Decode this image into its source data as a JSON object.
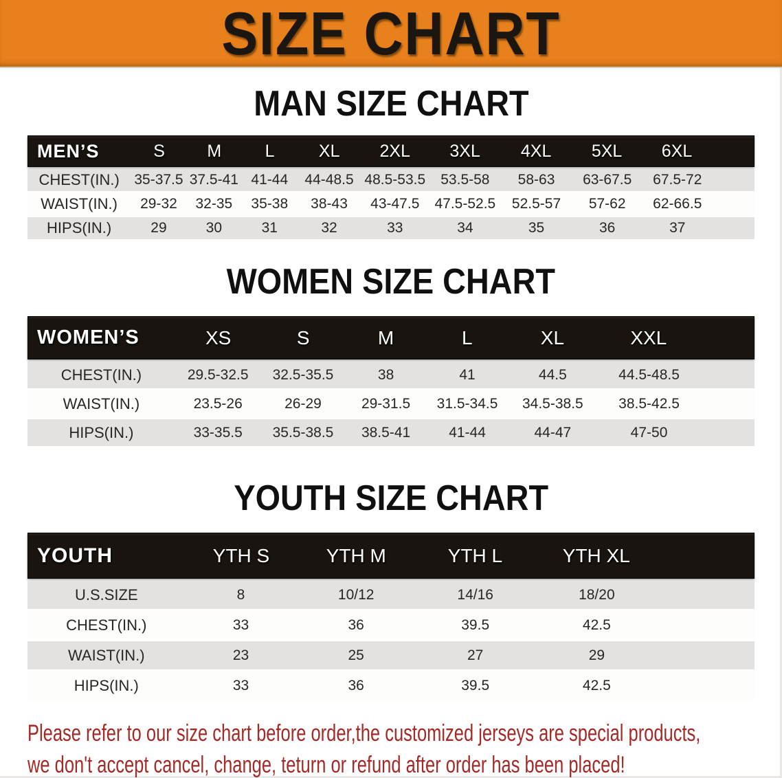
{
  "banner": {
    "title": "SIZE CHART"
  },
  "sections": [
    {
      "heading": "MAN SIZE CHART",
      "table": {
        "label": "MEN’S",
        "columns": [
          "S",
          "M",
          "L",
          "XL",
          "2XL",
          "3XL",
          "4XL",
          "5XL",
          "6XL"
        ],
        "rows": [
          {
            "label": "CHEST(IN.)",
            "values": [
              "35-37.5",
              "37.5-41",
              "41-44",
              "44-48.5",
              "48.5-53.5",
              "53.5-58",
              "58-63",
              "63-67.5",
              "67.5-72"
            ]
          },
          {
            "label": "WAIST(IN.)",
            "values": [
              "29-32",
              "32-35",
              "35-38",
              "38-43",
              "43-47.5",
              "47.5-52.5",
              "52.5-57",
              "57-62",
              "62-66.5"
            ]
          },
          {
            "label": "HIPS(IN.)",
            "values": [
              "29",
              "30",
              "31",
              "32",
              "33",
              "34",
              "35",
              "36",
              "37"
            ]
          }
        ]
      }
    },
    {
      "heading": "WOMEN SIZE CHART",
      "table": {
        "label": "WOMEN’S",
        "columns": [
          "XS",
          "S",
          "M",
          "L",
          "XL",
          "XXL"
        ],
        "rows": [
          {
            "label": "CHEST(IN.)",
            "values": [
              "29.5-32.5",
              "32.5-35.5",
              "38",
              "41",
              "44.5",
              "44.5-48.5"
            ]
          },
          {
            "label": "WAIST(IN.)",
            "values": [
              "23.5-26",
              "26-29",
              "29-31.5",
              "31.5-34.5",
              "34.5-38.5",
              "38.5-42.5"
            ]
          },
          {
            "label": "HIPS(IN.)",
            "values": [
              "33-35.5",
              "35.5-38.5",
              "38.5-41",
              "41-44",
              "44-47",
              "47-50"
            ]
          }
        ]
      }
    },
    {
      "heading": "YOUTH SIZE CHART",
      "table": {
        "label": "YOUTH",
        "columns": [
          "YTH S",
          "YTH M",
          "YTH L",
          "YTH XL"
        ],
        "rows": [
          {
            "label": "U.S.SIZE",
            "values": [
              "8",
              "10/12",
              "14/16",
              "18/20"
            ]
          },
          {
            "label": "CHEST(IN.)",
            "values": [
              "33",
              "36",
              "39.5",
              "42.5"
            ]
          },
          {
            "label": "WAIST(IN.)",
            "values": [
              "23",
              "25",
              "27",
              "29"
            ]
          },
          {
            "label": "HIPS(IN.)",
            "values": [
              "33",
              "36",
              "39.5",
              "42.5"
            ]
          }
        ]
      }
    }
  ],
  "disclaimer": {
    "line1": "Please refer to our size chart before order,the customized jerseys are special products,",
    "line2": "we don't accept cancel, change, teturn or refund after order has been placed!"
  },
  "colors": {
    "banner-bg": "#E8811B",
    "header-bg": "#19140F",
    "row-gray": "#E4E2E0",
    "row-white": "#FDFDFC",
    "disclaimer-red": "#A32A26",
    "title-black": "#1B1610"
  }
}
